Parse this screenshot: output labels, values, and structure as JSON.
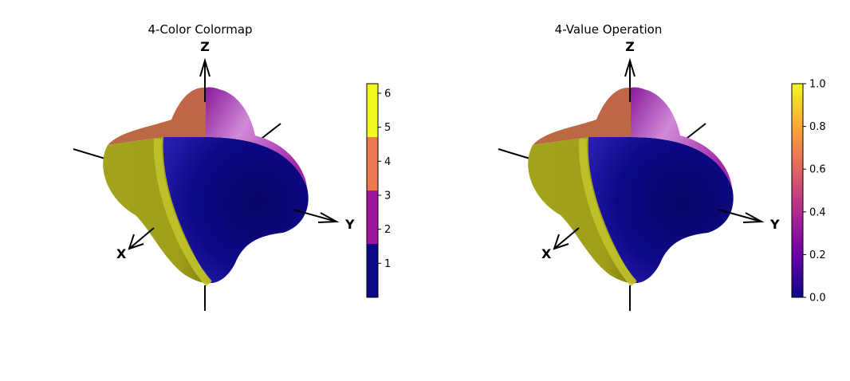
{
  "chart_data": [
    {
      "type": "surface3d",
      "title": "4-Color Colormap",
      "axes": {
        "x_label": "X",
        "y_label": "Y",
        "z_label": "Z"
      },
      "surface": "four-lobed spherical harmonic surface colored by region",
      "colorbar": {
        "kind": "discrete",
        "range": [
          0,
          6.28
        ],
        "segments": [
          {
            "from": 0.0,
            "to": 1.57,
            "color": "#0d0887"
          },
          {
            "from": 1.57,
            "to": 3.14,
            "color": "#9c179e"
          },
          {
            "from": 3.14,
            "to": 4.71,
            "color": "#ed7953"
          },
          {
            "from": 4.71,
            "to": 6.28,
            "color": "#f0f921"
          }
        ],
        "ticks": [
          1,
          2,
          3,
          4,
          5,
          6
        ],
        "tick_labels": [
          "1",
          "2",
          "3",
          "4",
          "5",
          "6"
        ]
      },
      "region_colors": {
        "lower_left": "#9f9f18",
        "front": "#0d0887",
        "top": "#a226a8",
        "upper_left": "#c2654a"
      }
    },
    {
      "type": "surface3d",
      "title": "4-Value Operation",
      "axes": {
        "x_label": "X",
        "y_label": "Y",
        "z_label": "Z"
      },
      "surface": "four-lobed spherical harmonic surface colored by region",
      "colorbar": {
        "kind": "continuous",
        "colormap": "plasma",
        "range": [
          0.0,
          1.0
        ],
        "stops": [
          "#0d0887",
          "#6a00a8",
          "#b12a90",
          "#e16462",
          "#fca636",
          "#f0f921"
        ],
        "ticks": [
          0.0,
          0.2,
          0.4,
          0.6,
          0.8,
          1.0
        ],
        "tick_labels": [
          "0.0",
          "0.2",
          "0.4",
          "0.6",
          "0.8",
          "1.0"
        ]
      },
      "region_colors": {
        "lower_left": "#9f9f18",
        "front": "#0d0887",
        "top": "#a226a8",
        "upper_left": "#c2654a"
      }
    }
  ]
}
